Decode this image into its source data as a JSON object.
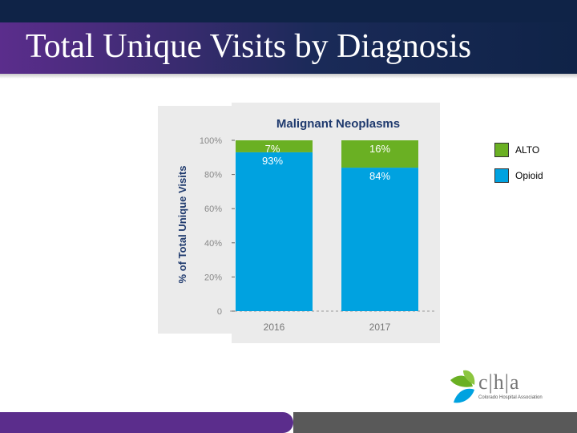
{
  "slide": {
    "title": "Total Unique Visits by Diagnosis"
  },
  "legend": {
    "items": [
      {
        "label": "ALTO",
        "color": "#6ab023"
      },
      {
        "label": "Opioid",
        "color": "#00a2e0"
      }
    ]
  },
  "logo": {
    "text": "c|h|a",
    "subtitle": "Colorado Hospital Association"
  },
  "chart_data": {
    "type": "bar",
    "stacked": true,
    "title": "Malignant Neoplasms",
    "ylabel": "% of Total Unique Visits",
    "xlabel": "",
    "categories": [
      "2016",
      "2017"
    ],
    "series": [
      {
        "name": "Opioid",
        "values": [
          93,
          84
        ],
        "labels": [
          "93%",
          "84%"
        ],
        "color": "#00a2e0"
      },
      {
        "name": "ALTO",
        "values": [
          7,
          16
        ],
        "labels": [
          "7%",
          "16%"
        ],
        "color": "#6ab023"
      }
    ],
    "yticks": [
      "0",
      "20%",
      "40%",
      "60%",
      "80%",
      "100%"
    ],
    "ylim": [
      0,
      100
    ],
    "grid": false
  }
}
